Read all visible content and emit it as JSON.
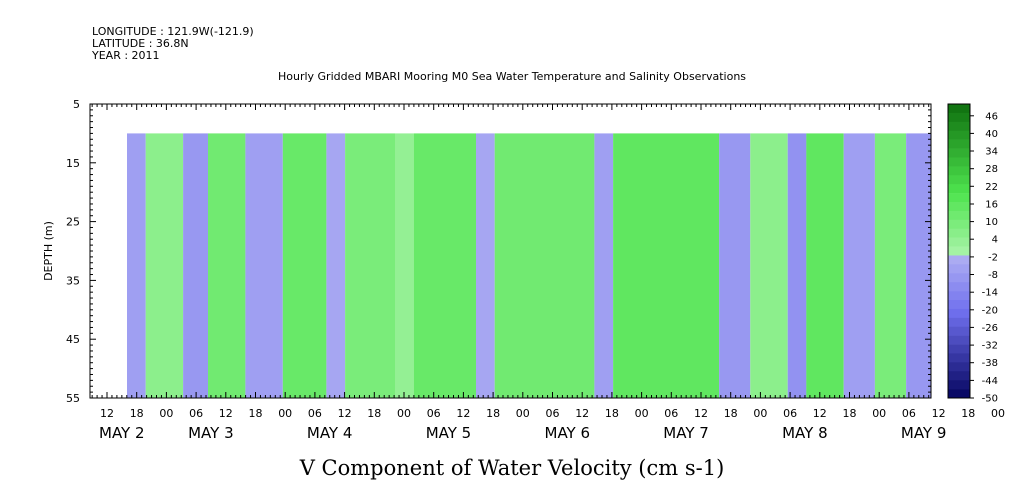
{
  "header": {
    "longitude": "LONGITUDE : 121.9W(-121.9)",
    "latitude": "LATITUDE : 36.8N",
    "year": "YEAR : 2011"
  },
  "chart_data": {
    "type": "heatmap",
    "title": "Hourly Gridded MBARI Mooring M0 Sea Water Temperature and Salinity Observations",
    "xlabel": "V Component of Water Velocity (cm s-1)",
    "ylabel": "DEPTH (m)",
    "y_ticks": [
      "5",
      "15",
      "25",
      "35",
      "45",
      "55"
    ],
    "ylim": [
      5,
      55
    ],
    "y_inverted": true,
    "x_hour_ticks": [
      "12",
      "18",
      "00",
      "06",
      "12",
      "18",
      "00",
      "06",
      "12",
      "18",
      "00",
      "06",
      "12",
      "18",
      "00",
      "06",
      "12",
      "18",
      "00",
      "06",
      "12",
      "18",
      "00",
      "06",
      "12",
      "18",
      "00",
      "06",
      "12",
      "18",
      "00",
      "06"
    ],
    "x_day_labels": [
      "MAY  2",
      "MAY  3",
      "MAY  4",
      "MAY  5",
      "MAY  6",
      "MAY  7",
      "MAY  8",
      "MAY  9"
    ],
    "data_depth_range": [
      10,
      55
    ],
    "colorbar_labels": [
      "46",
      "40",
      "34",
      "28",
      "22",
      "16",
      "10",
      "4",
      "-2",
      "-8",
      "-14",
      "-20",
      "-26",
      "-32",
      "-38",
      "-44",
      "-50"
    ],
    "colorbar_range": [
      -50,
      50
    ],
    "colorbar_step": 3,
    "colors": {
      "positive_low": "#a6f3a6",
      "positive_mid": "#4ee44e",
      "positive_high": "#0f6f0f",
      "negative_low": "#b3b3f3",
      "negative_mid": "#7070ee",
      "negative_high": "#00005a"
    },
    "column_bands": [
      {
        "start_hour": 0,
        "end_hour": 6,
        "value": -6
      },
      {
        "start_hour": 6,
        "end_hour": 18,
        "value": 6
      },
      {
        "start_hour": 18,
        "end_hour": 26,
        "value": -8
      },
      {
        "start_hour": 26,
        "end_hour": 38,
        "value": 12
      },
      {
        "start_hour": 38,
        "end_hour": 50,
        "value": -6
      },
      {
        "start_hour": 50,
        "end_hour": 64,
        "value": 14
      },
      {
        "start_hour": 64,
        "end_hour": 70,
        "value": -4
      },
      {
        "start_hour": 70,
        "end_hour": 86,
        "value": 10
      },
      {
        "start_hour": 86,
        "end_hour": 92,
        "value": 4
      },
      {
        "start_hour": 92,
        "end_hour": 112,
        "value": 14
      },
      {
        "start_hour": 112,
        "end_hour": 118,
        "value": -4
      },
      {
        "start_hour": 118,
        "end_hour": 150,
        "value": 12
      },
      {
        "start_hour": 150,
        "end_hour": 156,
        "value": -6
      },
      {
        "start_hour": 156,
        "end_hour": 190,
        "value": 16
      },
      {
        "start_hour": 190,
        "end_hour": 200,
        "value": -8
      },
      {
        "start_hour": 200,
        "end_hour": 212,
        "value": 6
      },
      {
        "start_hour": 212,
        "end_hour": 218,
        "value": -10
      },
      {
        "start_hour": 218,
        "end_hour": 230,
        "value": 16
      },
      {
        "start_hour": 230,
        "end_hour": 240,
        "value": -6
      },
      {
        "start_hour": 240,
        "end_hour": 250,
        "value": 10
      },
      {
        "start_hour": 250,
        "end_hour": 258,
        "value": -8
      }
    ],
    "grid": false,
    "legend": "colorbar-right"
  }
}
